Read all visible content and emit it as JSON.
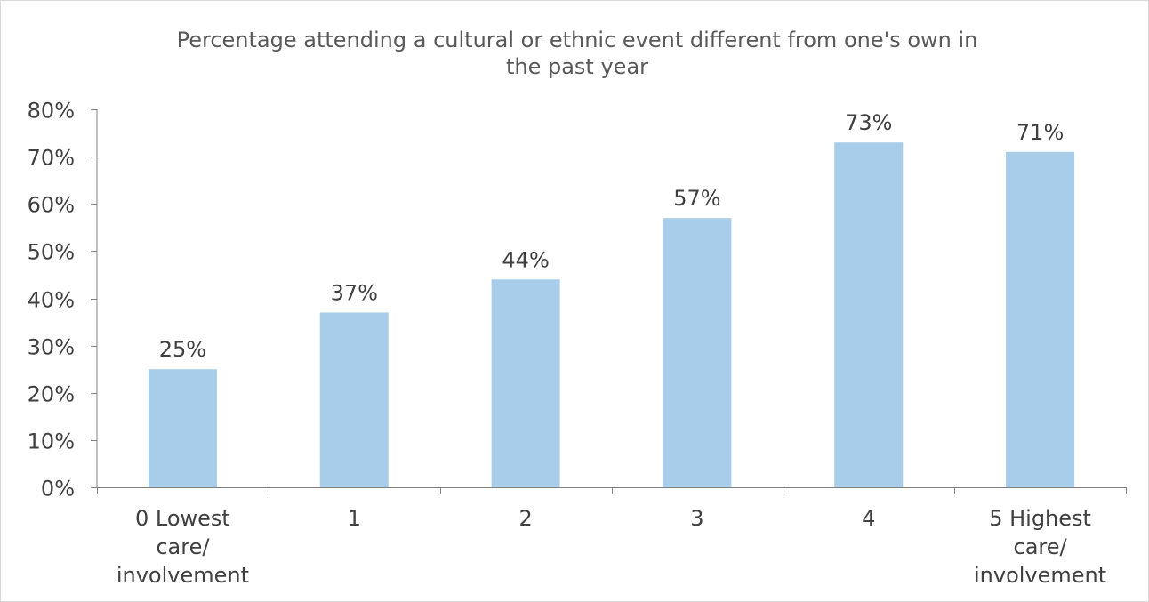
{
  "chart_data": {
    "type": "bar",
    "title_lines": [
      "Percentage attending a cultural or ethnic event different from one's own in",
      "the past year"
    ],
    "categories": [
      [
        "0 Lowest",
        "care/",
        "involvement"
      ],
      [
        "1"
      ],
      [
        "2"
      ],
      [
        "3"
      ],
      [
        "4"
      ],
      [
        "5 Highest",
        "care/",
        "involvement"
      ]
    ],
    "values": [
      25,
      37,
      44,
      57,
      73,
      71
    ],
    "data_labels": [
      "25%",
      "37%",
      "44%",
      "57%",
      "73%",
      "71%"
    ],
    "ylim": [
      0,
      80
    ],
    "y_ticks": [
      0,
      10,
      20,
      30,
      40,
      50,
      60,
      70,
      80
    ],
    "y_tick_labels": [
      "0%",
      "10%",
      "20%",
      "30%",
      "40%",
      "50%",
      "60%",
      "70%",
      "80%"
    ],
    "xlabel": "",
    "ylabel": "",
    "grid": false,
    "legend": "none",
    "colors": {
      "bar": "#a8cdea",
      "axis": "#808080",
      "title": "#595959",
      "text": "#404040"
    }
  }
}
